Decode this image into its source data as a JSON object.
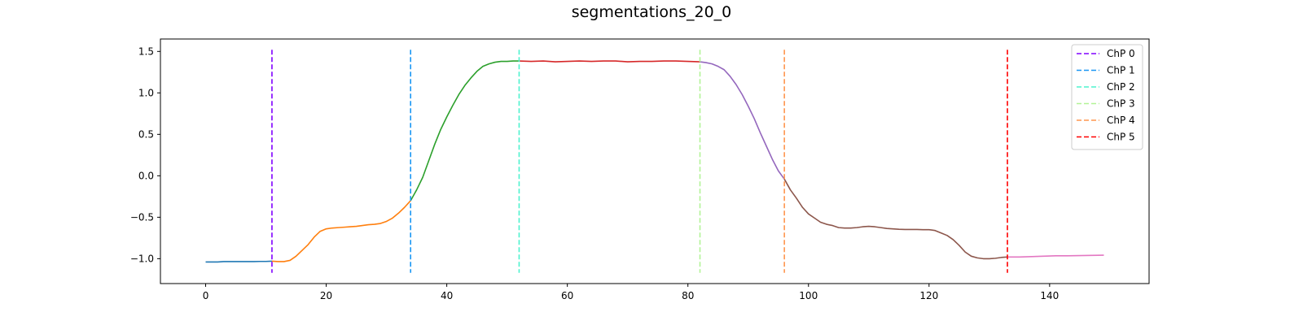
{
  "chart_data": {
    "type": "line",
    "title": "segmentations_20_0",
    "xlabel": "",
    "ylabel": "",
    "xlim": [
      -7.5,
      156.5
    ],
    "ylim": [
      -1.3,
      1.65
    ],
    "x_ticks": [
      0,
      20,
      40,
      60,
      80,
      100,
      120,
      140
    ],
    "y_ticks": [
      -1.0,
      -0.5,
      0.0,
      0.5,
      1.0,
      1.5
    ],
    "y_tick_labels": [
      "−1.0",
      "−0.5",
      "0.0",
      "0.5",
      "1.0",
      "1.5"
    ],
    "grid": false,
    "legend_position": "top-right",
    "series": [
      {
        "color": "#1f77b4",
        "x": [
          0,
          1,
          2,
          3,
          4,
          5,
          6,
          7,
          8,
          9,
          10,
          11
        ],
        "y": [
          -1.04,
          -1.04,
          -1.04,
          -1.035,
          -1.035,
          -1.035,
          -1.035,
          -1.035,
          -1.035,
          -1.033,
          -1.033,
          -1.03
        ]
      },
      {
        "color": "#ff7f0e",
        "x": [
          11,
          12,
          13,
          14,
          15,
          16,
          17,
          18,
          19,
          20,
          21,
          22,
          23,
          24,
          25,
          26,
          27,
          28,
          29,
          30,
          31,
          32,
          33,
          34
        ],
        "y": [
          -1.03,
          -1.035,
          -1.035,
          -1.02,
          -0.97,
          -0.9,
          -0.83,
          -0.74,
          -0.67,
          -0.64,
          -0.63,
          -0.625,
          -0.62,
          -0.615,
          -0.61,
          -0.6,
          -0.59,
          -0.585,
          -0.575,
          -0.55,
          -0.51,
          -0.45,
          -0.38,
          -0.3
        ]
      },
      {
        "color": "#2ca02c",
        "x": [
          34,
          35,
          36,
          37,
          38,
          39,
          40,
          41,
          42,
          43,
          44,
          45,
          46,
          47,
          48,
          49,
          50,
          51,
          52
        ],
        "y": [
          -0.3,
          -0.17,
          -0.02,
          0.18,
          0.38,
          0.56,
          0.71,
          0.85,
          0.98,
          1.09,
          1.18,
          1.26,
          1.32,
          1.35,
          1.37,
          1.38,
          1.38,
          1.385,
          1.385
        ]
      },
      {
        "color": "#d62728",
        "x": [
          52,
          54,
          56,
          58,
          60,
          62,
          64,
          66,
          68,
          70,
          72,
          74,
          76,
          78,
          80,
          82
        ],
        "y": [
          1.385,
          1.38,
          1.385,
          1.375,
          1.38,
          1.385,
          1.38,
          1.385,
          1.385,
          1.375,
          1.38,
          1.38,
          1.385,
          1.385,
          1.38,
          1.375
        ]
      },
      {
        "color": "#9467bd",
        "x": [
          82,
          83,
          84,
          85,
          86,
          87,
          88,
          89,
          90,
          91,
          92,
          93,
          94,
          95,
          96
        ],
        "y": [
          1.375,
          1.365,
          1.35,
          1.32,
          1.28,
          1.2,
          1.1,
          0.98,
          0.84,
          0.69,
          0.52,
          0.36,
          0.2,
          0.06,
          -0.04
        ]
      },
      {
        "color": "#8c564b",
        "x": [
          96,
          97,
          98,
          99,
          100,
          101,
          102,
          103,
          104,
          105,
          106,
          107,
          108,
          109,
          110,
          111,
          112,
          113,
          114,
          115,
          116,
          117,
          118,
          119,
          120,
          121,
          122,
          123,
          124,
          125,
          126,
          127,
          128,
          129,
          130,
          131,
          132,
          133
        ],
        "y": [
          -0.04,
          -0.17,
          -0.27,
          -0.38,
          -0.46,
          -0.51,
          -0.56,
          -0.585,
          -0.6,
          -0.625,
          -0.63,
          -0.63,
          -0.625,
          -0.615,
          -0.61,
          -0.615,
          -0.625,
          -0.635,
          -0.64,
          -0.645,
          -0.648,
          -0.648,
          -0.648,
          -0.65,
          -0.65,
          -0.66,
          -0.69,
          -0.72,
          -0.77,
          -0.84,
          -0.92,
          -0.97,
          -0.99,
          -1.0,
          -1.0,
          -0.995,
          -0.985,
          -0.98
        ]
      },
      {
        "color": "#e377c2",
        "x": [
          133,
          135,
          137,
          139,
          141,
          143,
          145,
          147,
          149
        ],
        "y": [
          -0.98,
          -0.98,
          -0.975,
          -0.97,
          -0.965,
          -0.965,
          -0.963,
          -0.96,
          -0.958
        ]
      }
    ],
    "changepoints": [
      {
        "label": "ChP 0",
        "x": 11,
        "color": "#8000ff"
      },
      {
        "label": "ChP 1",
        "x": 34,
        "color": "#1996f3"
      },
      {
        "label": "ChP 2",
        "x": 52,
        "color": "#4df3ce"
      },
      {
        "label": "ChP 3",
        "x": 82,
        "color": "#b2f396"
      },
      {
        "label": "ChP 4",
        "x": 96,
        "color": "#ff964f"
      },
      {
        "label": "ChP 5",
        "x": 133,
        "color": "#ff0000"
      }
    ],
    "changepoint_ymin": -1.17,
    "changepoint_ymax": 1.52
  }
}
